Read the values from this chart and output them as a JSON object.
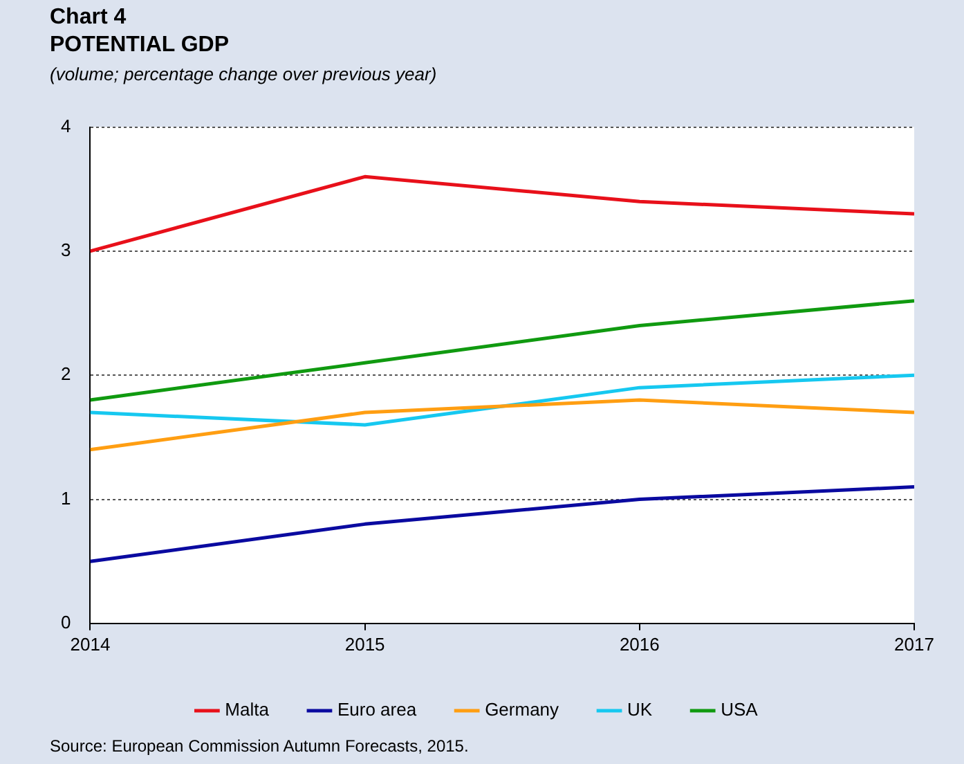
{
  "chart_data": {
    "type": "line",
    "title": "Chart 4",
    "subtitle": "POTENTIAL GDP",
    "ylabel": "(volume; percentage change over previous year)",
    "x": [
      2014,
      2015,
      2016,
      2017
    ],
    "xlim": [
      2014,
      2017
    ],
    "xticks": [
      2014,
      2015,
      2016,
      2017
    ],
    "ylim": [
      0,
      4
    ],
    "yticks": [
      0,
      1,
      2,
      3,
      4
    ],
    "series": [
      {
        "name": "Malta",
        "color": "#e8101a",
        "values": [
          3.0,
          3.6,
          3.4,
          3.3
        ]
      },
      {
        "name": "Euro area",
        "color": "#0a0aa0",
        "values": [
          0.5,
          0.8,
          1.0,
          1.1
        ]
      },
      {
        "name": "Germany",
        "color": "#ff9e12",
        "values": [
          1.4,
          1.7,
          1.8,
          1.7
        ]
      },
      {
        "name": "UK",
        "color": "#16c8f0",
        "values": [
          1.7,
          1.6,
          1.9,
          2.0
        ]
      },
      {
        "name": "USA",
        "color": "#109a10",
        "values": [
          1.8,
          2.1,
          2.4,
          2.6
        ]
      }
    ],
    "grid": "y",
    "legend": "bottom",
    "marker": "none",
    "line_style": "solid",
    "annotations": [
      "Source: European Commission Autumn Forecasts, 2015."
    ]
  }
}
